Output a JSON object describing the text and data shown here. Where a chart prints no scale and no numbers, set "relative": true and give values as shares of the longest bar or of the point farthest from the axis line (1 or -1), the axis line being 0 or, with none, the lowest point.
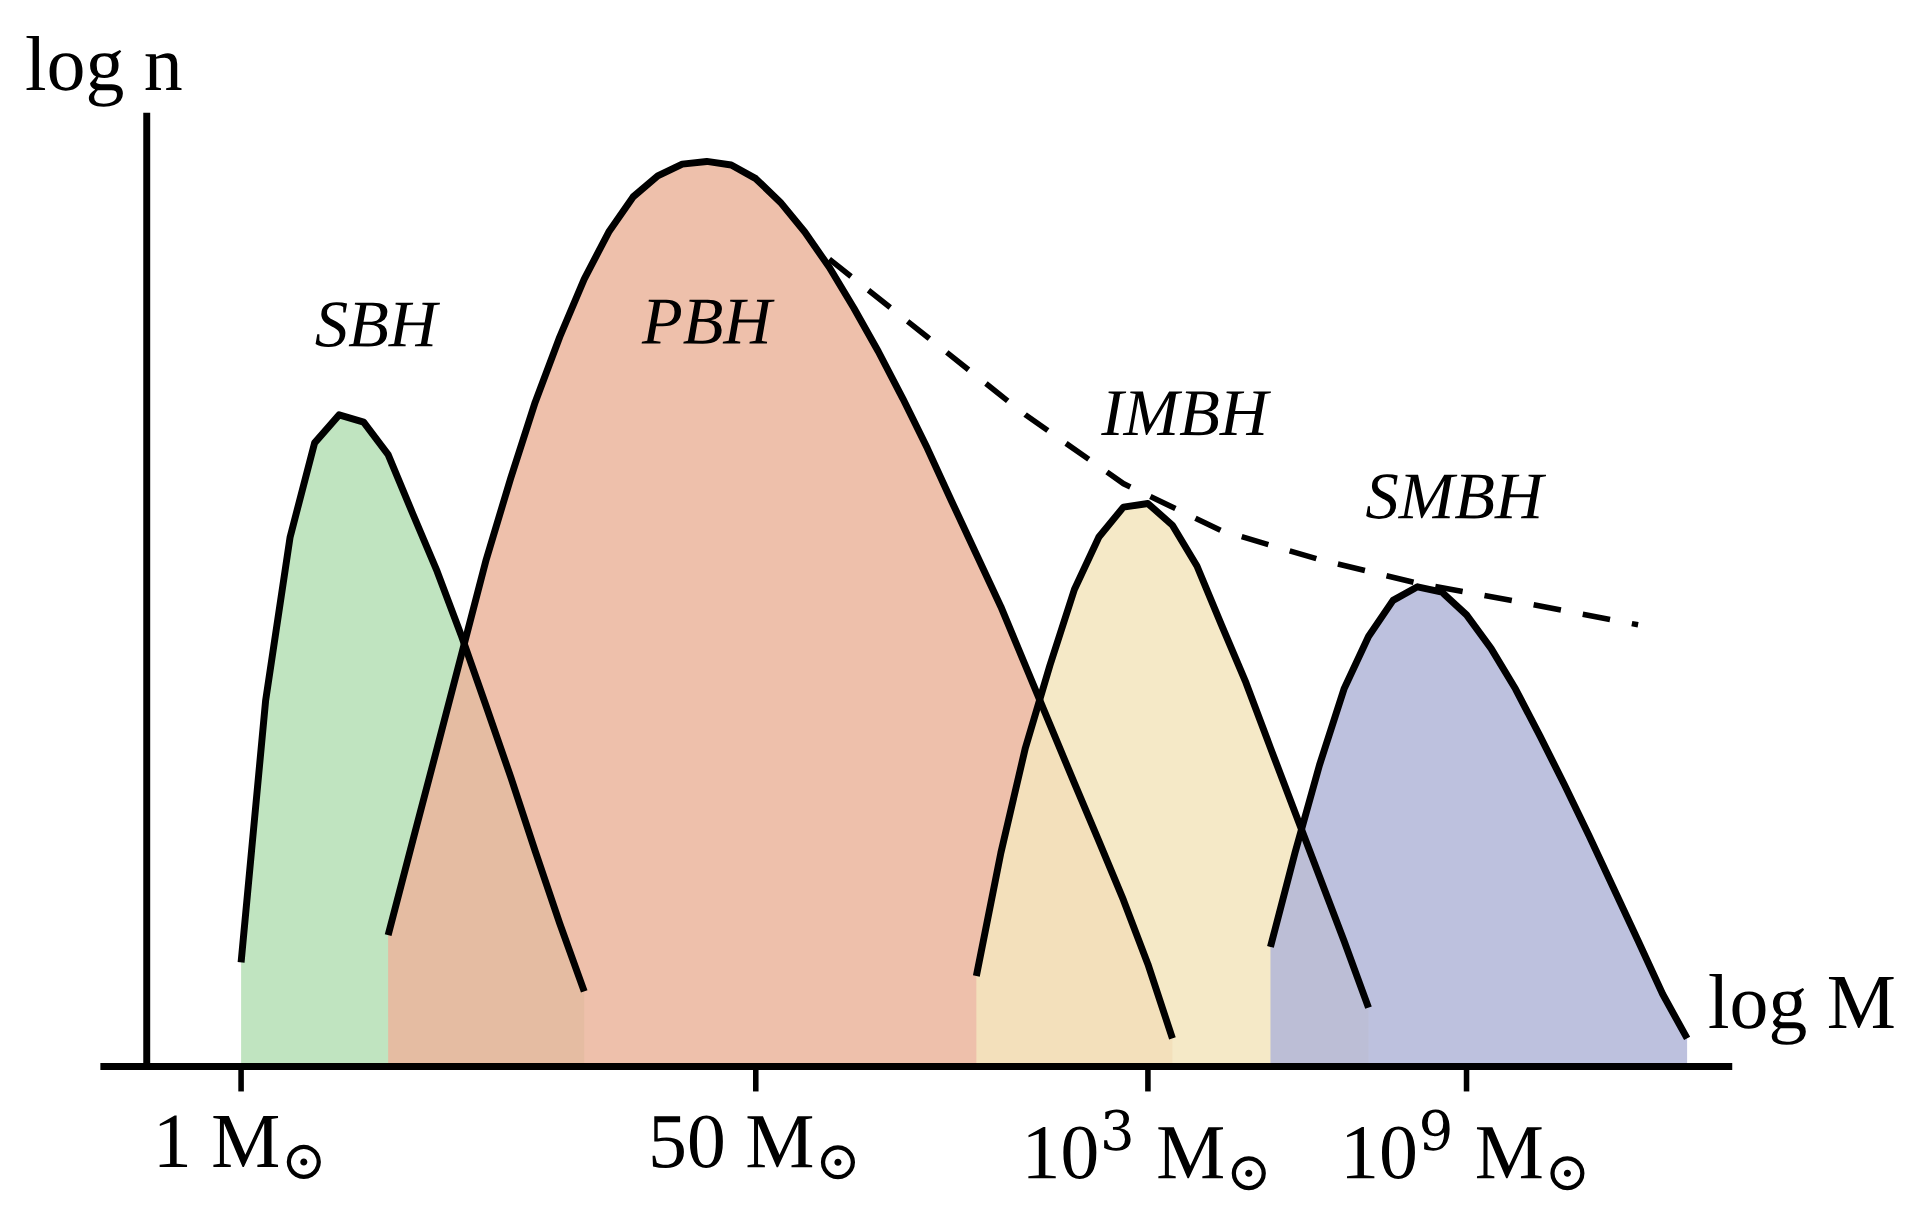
{
  "chart_data": {
    "type": "area",
    "relative": true,
    "xlabel": "log M",
    "ylabel": "log n",
    "categories": [
      "1 M$_{⊙}$",
      null,
      null,
      null,
      null,
      null,
      null,
      null,
      null,
      null,
      null,
      null,
      null,
      null,
      null,
      null,
      null,
      null,
      null,
      null,
      null,
      "50 M$_{⊙}$",
      null,
      null,
      null,
      null,
      null,
      null,
      null,
      null,
      null,
      null,
      null,
      null,
      null,
      null,
      null,
      "10$^{3}$ M$_{⊙}$",
      null,
      null,
      null,
      null,
      null,
      null,
      null,
      null,
      null,
      null,
      null,
      null,
      "10$^{9}$ M$_{⊙}$",
      null,
      null,
      null,
      null,
      null,
      null,
      null,
      null,
      null
    ],
    "series": [
      {
        "name": "SBH",
        "color": "#b5dfb5",
        "values": [
          0.115,
          0.404,
          0.585,
          0.689,
          0.72,
          0.712,
          0.676,
          0.611,
          0.547,
          0.475,
          0.398,
          0.32,
          0.238,
          0.158,
          0.083,
          null,
          null,
          null,
          null,
          null,
          null,
          null,
          null,
          null,
          null,
          null,
          null,
          null,
          null,
          null,
          null,
          null,
          null,
          null,
          null,
          null,
          null,
          null,
          null,
          null,
          null,
          null,
          null,
          null,
          null,
          null,
          null,
          null,
          null,
          null,
          null,
          null,
          null,
          null,
          null,
          null,
          null,
          null,
          null,
          null
        ]
      },
      {
        "name": "PBH",
        "color": "#ebb59c",
        "values": [
          null,
          null,
          null,
          null,
          null,
          null,
          0.145,
          0.249,
          0.352,
          0.456,
          0.56,
          0.65,
          0.734,
          0.806,
          0.87,
          0.922,
          0.961,
          0.984,
          0.997,
          1.0,
          0.996,
          0.981,
          0.955,
          0.922,
          0.883,
          0.838,
          0.79,
          0.738,
          0.683,
          0.624,
          0.566,
          0.508,
          0.443,
          0.378,
          0.313,
          0.249,
          0.184,
          0.113,
          0.031,
          null,
          null,
          null,
          null,
          null,
          null,
          null,
          null,
          null,
          null,
          null,
          null,
          null,
          null,
          null,
          null,
          null,
          null,
          null,
          null,
          null
        ]
      },
      {
        "name": "IMBH",
        "color": "#f3e5bd",
        "values": [
          null,
          null,
          null,
          null,
          null,
          null,
          null,
          null,
          null,
          null,
          null,
          null,
          null,
          null,
          null,
          null,
          null,
          null,
          null,
          null,
          null,
          null,
          null,
          null,
          null,
          null,
          null,
          null,
          null,
          null,
          0.1,
          0.236,
          0.352,
          0.443,
          0.527,
          0.585,
          0.618,
          0.622,
          0.598,
          0.553,
          0.488,
          0.424,
          0.352,
          0.281,
          0.21,
          0.139,
          0.065,
          null,
          null,
          null,
          null,
          null,
          null,
          null,
          null,
          null,
          null,
          null,
          null,
          null
        ]
      },
      {
        "name": "SMBH",
        "color": "#b1b6d8",
        "values": [
          null,
          null,
          null,
          null,
          null,
          null,
          null,
          null,
          null,
          null,
          null,
          null,
          null,
          null,
          null,
          null,
          null,
          null,
          null,
          null,
          null,
          null,
          null,
          null,
          null,
          null,
          null,
          null,
          null,
          null,
          null,
          null,
          null,
          null,
          null,
          null,
          null,
          null,
          null,
          null,
          null,
          null,
          0.132,
          0.236,
          0.333,
          0.417,
          0.475,
          0.515,
          0.53,
          0.524,
          0.499,
          0.462,
          0.417,
          0.365,
          0.311,
          0.255,
          0.197,
          0.139,
          0.08,
          0.031
        ]
      },
      {
        "type": "line",
        "color": "#000000",
        "line_style": "dashed",
        "values": [
          null,
          null,
          null,
          null,
          null,
          null,
          null,
          null,
          null,
          null,
          null,
          null,
          null,
          null,
          null,
          null,
          null,
          null,
          null,
          null,
          null,
          null,
          null,
          null,
          0.892,
          null,
          null,
          null,
          0.806,
          null,
          null,
          null,
          0.72,
          null,
          null,
          null,
          0.644,
          null,
          null,
          null,
          0.592,
          null,
          null,
          null,
          0.56,
          null,
          null,
          null,
          0.534,
          null,
          null,
          null,
          0.514,
          null,
          null,
          null,
          null,
          0.488,
          null,
          null
        ]
      }
    ],
    "grid": false,
    "legend": false
  }
}
